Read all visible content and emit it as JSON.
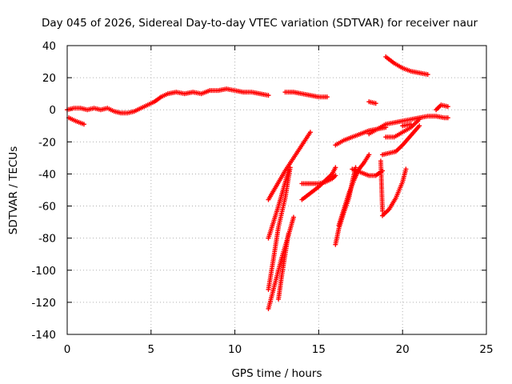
{
  "chart_data": {
    "type": "scatter",
    "title": "Day 045 of 2026, Sidereal Day-to-day VTEC variation (SDTVAR) for receiver naur",
    "xlabel": "GPS time / hours",
    "ylabel": "SDTVAR / TECUs",
    "xlim": [
      0,
      25
    ],
    "ylim": [
      -140,
      40
    ],
    "xticks": [
      0,
      5,
      10,
      15,
      20,
      25
    ],
    "yticks": [
      -140,
      -120,
      -100,
      -80,
      -60,
      -40,
      -20,
      0,
      20,
      40
    ],
    "grid": true,
    "marker": "+",
    "color": "#ff0000",
    "series": [
      {
        "x": [
          0.0,
          0.4,
          0.8,
          1.2,
          1.6,
          2.0,
          2.4,
          2.8,
          3.2,
          3.6,
          4.0,
          4.4,
          4.8,
          5.2,
          5.6,
          6.0,
          6.5,
          7.0,
          7.5,
          8.0,
          8.5,
          9.0,
          9.5,
          10.0,
          10.5,
          11.0,
          11.5,
          12.0
        ],
        "y": [
          0,
          1,
          1,
          0,
          1,
          0,
          1,
          -1,
          -2,
          -2,
          -1,
          1,
          3,
          5,
          8,
          10,
          11,
          10,
          11,
          10,
          12,
          12,
          13,
          12,
          11,
          11,
          10,
          9
        ]
      },
      {
        "x": [
          0.1,
          0.5,
          1.0
        ],
        "y": [
          -5,
          -7,
          -9
        ]
      },
      {
        "x": [
          13.0,
          13.5,
          14.0,
          14.5,
          15.0,
          15.5
        ],
        "y": [
          11,
          11,
          10,
          9,
          8,
          8
        ]
      },
      {
        "x": [
          12.0,
          12.5,
          13.0,
          13.5,
          14.0,
          14.5
        ],
        "y": [
          -56,
          -47,
          -38,
          -30,
          -22,
          -14
        ]
      },
      {
        "x": [
          12.0,
          12.3,
          12.6,
          13.0,
          13.3
        ],
        "y": [
          -112,
          -93,
          -73,
          -55,
          -36
        ]
      },
      {
        "x": [
          12.0,
          12.3,
          12.6,
          12.9,
          13.2
        ],
        "y": [
          -80,
          -70,
          -60,
          -49,
          -38
        ]
      },
      {
        "x": [
          12.0,
          12.4,
          12.8,
          13.2,
          13.5
        ],
        "y": [
          -124,
          -108,
          -92,
          -78,
          -67
        ]
      },
      {
        "x": [
          12.6,
          12.8,
          13.0,
          13.2
        ],
        "y": [
          -118,
          -103,
          -90,
          -77
        ]
      },
      {
        "x": [
          14.0,
          14.5,
          15.0,
          15.4,
          15.8,
          16.0
        ],
        "y": [
          -46,
          -46,
          -46,
          -45,
          -43,
          -41
        ]
      },
      {
        "x": [
          14.0,
          14.5,
          15.0,
          15.4,
          15.8,
          16.0
        ],
        "y": [
          -56,
          -52,
          -48,
          -44,
          -40,
          -36
        ]
      },
      {
        "x": [
          16.0,
          16.2,
          16.5,
          16.8,
          17.0,
          17.2
        ],
        "y": [
          -84,
          -74,
          -64,
          -55,
          -45,
          -36
        ]
      },
      {
        "x": [
          16.2,
          16.5,
          16.8,
          17.1,
          17.4,
          17.7,
          18.0
        ],
        "y": [
          -72,
          -62,
          -52,
          -44,
          -37,
          -33,
          -28
        ]
      },
      {
        "x": [
          16.0,
          16.5,
          17.0,
          17.5,
          18.0,
          18.5,
          19.0
        ],
        "y": [
          -22,
          -19,
          -17,
          -15,
          -13,
          -12,
          -11
        ]
      },
      {
        "x": [
          17.0,
          17.5,
          18.0,
          18.4,
          18.8
        ],
        "y": [
          -37,
          -39,
          -41,
          -41,
          -38
        ]
      },
      {
        "x": [
          18.0,
          18.4
        ],
        "y": [
          5,
          4
        ]
      },
      {
        "x": [
          19.0,
          19.5,
          20.0,
          20.5,
          21.0,
          21.5
        ],
        "y": [
          33,
          29,
          26,
          24,
          23,
          22
        ]
      },
      {
        "x": [
          18.0,
          18.5,
          19.0,
          19.5,
          20.0,
          20.5,
          21.0,
          21.5,
          22.0,
          22.5,
          22.7
        ],
        "y": [
          -15,
          -12,
          -9,
          -8,
          -7,
          -6,
          -5,
          -4,
          -4,
          -5,
          -5
        ]
      },
      {
        "x": [
          19.0,
          19.5,
          20.0,
          20.5,
          21.0
        ],
        "y": [
          -17,
          -17,
          -14,
          -11,
          -6
        ]
      },
      {
        "x": [
          18.8,
          19.2,
          19.6,
          20.0,
          20.5,
          21.0
        ],
        "y": [
          -28,
          -27,
          -26,
          -22,
          -16,
          -10
        ]
      },
      {
        "x": [
          18.8,
          19.2,
          19.6,
          20.0,
          20.2
        ],
        "y": [
          -66,
          -62,
          -55,
          -45,
          -37
        ]
      },
      {
        "x": [
          22.0,
          22.3,
          22.7
        ],
        "y": [
          0,
          3,
          2
        ]
      },
      {
        "x": [
          20.0,
          20.5
        ],
        "y": [
          -10,
          -9
        ]
      },
      {
        "x": [
          18.7,
          18.8
        ],
        "y": [
          -32,
          -63
        ]
      }
    ]
  }
}
